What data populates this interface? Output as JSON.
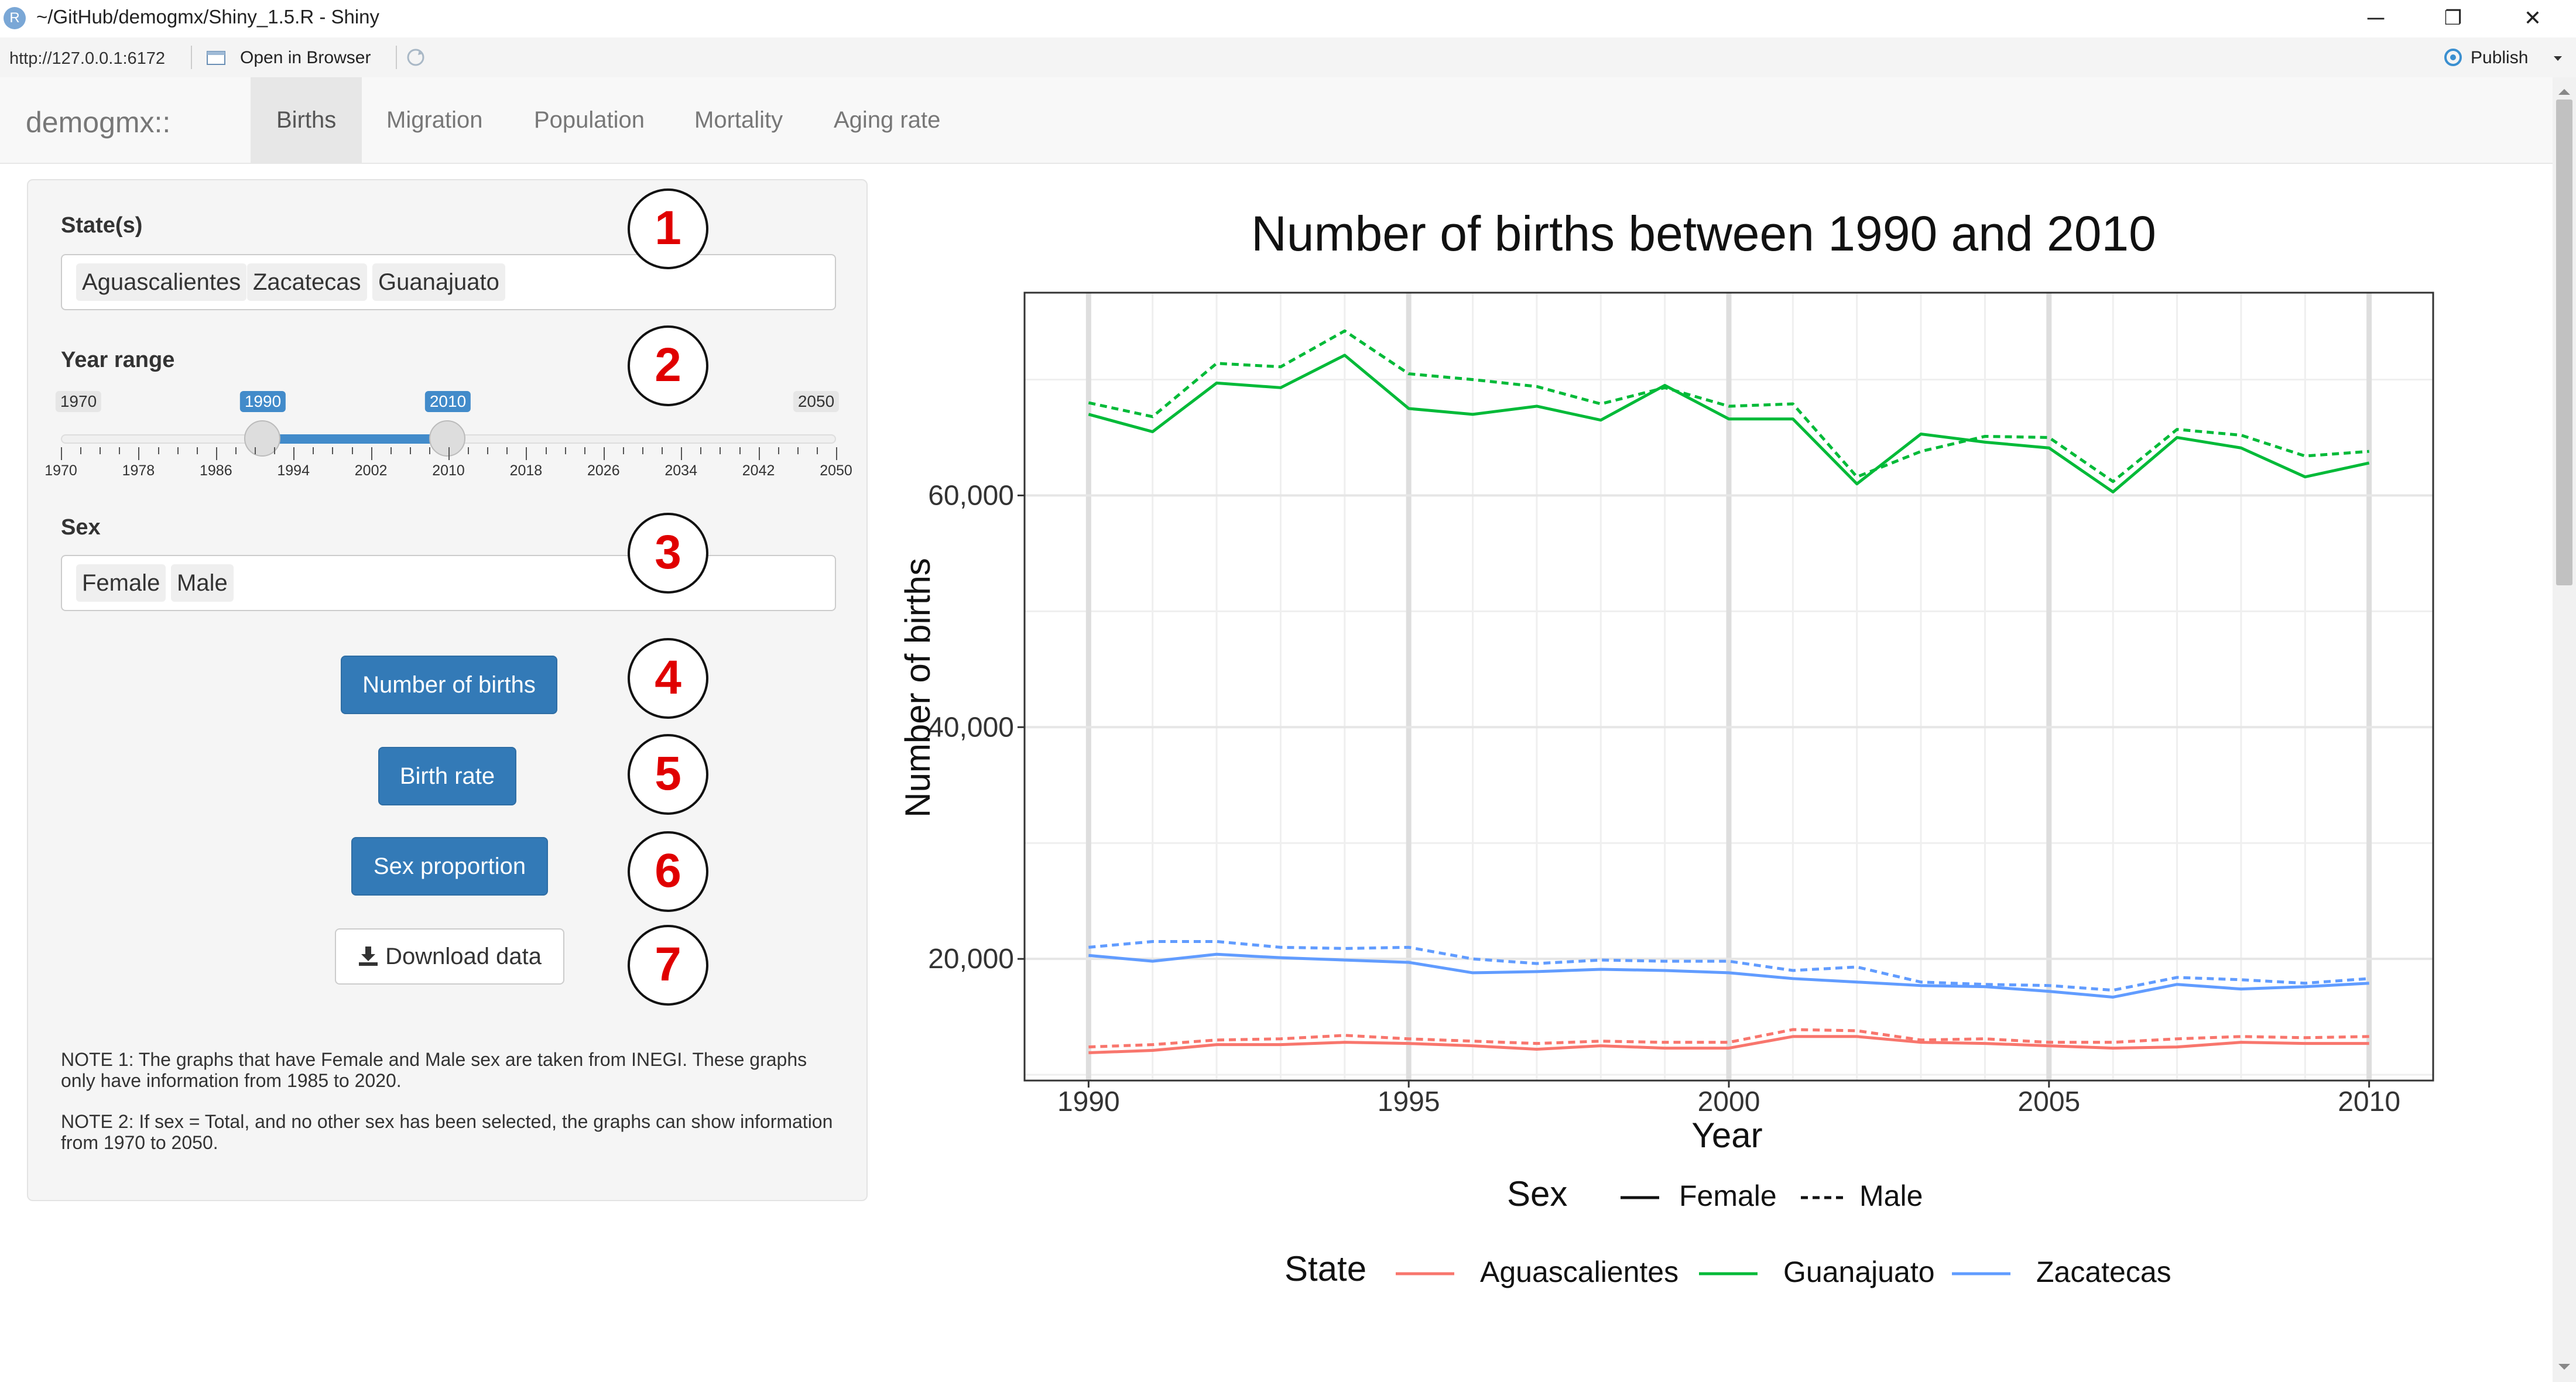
{
  "window": {
    "title": "~/GitHub/demogmx/Shiny_1.5.R - Shiny",
    "app_icon_letter": "R",
    "minimize_icon": "─",
    "restore_icon": "❐",
    "close_icon": "✕"
  },
  "addressbar": {
    "url": "http://127.0.0.1:6172",
    "open_in_browser": "Open in Browser",
    "publish": "Publish"
  },
  "navbar": {
    "brand": "demogmx::",
    "tabs": [
      "Births",
      "Migration",
      "Population",
      "Mortality",
      "Aging rate"
    ],
    "active_tab": "Births"
  },
  "sidebar": {
    "states": {
      "label": "State(s)",
      "selected": [
        "Aguascalientes",
        "Zacatecas",
        "Guanajuato"
      ]
    },
    "year_range": {
      "label": "Year range",
      "min": "1970",
      "max": "2050",
      "from": "1990",
      "to": "2010",
      "ticks": [
        "1970",
        "1978",
        "1986",
        "1994",
        "2002",
        "2010",
        "2018",
        "2026",
        "2034",
        "2042",
        "2050"
      ]
    },
    "sex": {
      "label": "Sex",
      "selected": [
        "Female",
        "Male"
      ]
    },
    "buttons": {
      "number_of_births": "Number of births",
      "birth_rate": "Birth rate",
      "sex_proportion": "Sex proportion",
      "download_data": "Download data"
    },
    "notes": [
      "NOTE 1: The graphs that have Female and Male sex are taken from INEGI. These graphs only have information from 1985 to 2020.",
      "NOTE 2: If sex = Total, and no other sex has been selected, the graphs can show information from 1970 to 2050."
    ]
  },
  "annotations": [
    "1",
    "2",
    "3",
    "4",
    "5",
    "6",
    "7"
  ],
  "chart_data": {
    "type": "line",
    "title": "Number of births between 1990 and 2010",
    "xlabel": "Year",
    "ylabel": "Number of births",
    "x": [
      1990,
      1991,
      1992,
      1993,
      1994,
      1995,
      1996,
      1997,
      1998,
      1999,
      2000,
      2001,
      2002,
      2003,
      2004,
      2005,
      2006,
      2007,
      2008,
      2009,
      2010
    ],
    "xticks": [
      "1990",
      "1995",
      "2000",
      "2005",
      "2010"
    ],
    "yticks": [
      "20,000",
      "40,000",
      "60,000"
    ],
    "ylim": [
      9500,
      77500
    ],
    "xlim": [
      1989,
      2011
    ],
    "grid": true,
    "legend_position": "bottom",
    "legend": {
      "sex_title": "Sex",
      "sex_entries": [
        "Female",
        "Male"
      ],
      "state_title": "State",
      "state_entries": [
        "Aguascalientes",
        "Guanajuato",
        "Zacatecas"
      ]
    },
    "colors": {
      "Aguascalientes": "#F8766D",
      "Guanajuato": "#00BA38",
      "Zacatecas": "#619CFF"
    },
    "series": [
      {
        "state": "Guanajuato",
        "sex": "Female",
        "values": [
          67000,
          65500,
          69700,
          69300,
          72100,
          67500,
          67000,
          67700,
          66500,
          69500,
          66600,
          66600,
          61000,
          65300,
          64600,
          64100,
          60300,
          65000,
          64100,
          61600,
          62800
        ]
      },
      {
        "state": "Guanajuato",
        "sex": "Male",
        "values": [
          68000,
          66800,
          71400,
          71100,
          74200,
          70500,
          70000,
          69400,
          67900,
          69300,
          67700,
          67900,
          61600,
          63800,
          65100,
          65000,
          61200,
          65700,
          65200,
          63400,
          63800
        ]
      },
      {
        "state": "Zacatecas",
        "sex": "Female",
        "values": [
          20300,
          19800,
          20400,
          20100,
          19900,
          19700,
          18800,
          18900,
          19100,
          19000,
          18800,
          18300,
          18000,
          17700,
          17600,
          17200,
          16700,
          17800,
          17400,
          17600,
          17900
        ]
      },
      {
        "state": "Zacatecas",
        "sex": "Male",
        "values": [
          21000,
          21500,
          21500,
          21000,
          20900,
          21000,
          20000,
          19600,
          19900,
          19800,
          19800,
          19000,
          19300,
          18000,
          17800,
          17700,
          17300,
          18400,
          18200,
          17900,
          18300
        ]
      },
      {
        "state": "Aguascalientes",
        "sex": "Female",
        "values": [
          11900,
          12100,
          12600,
          12600,
          12800,
          12700,
          12500,
          12200,
          12500,
          12300,
          12300,
          13300,
          13300,
          12800,
          12700,
          12500,
          12300,
          12400,
          12800,
          12700,
          12700
        ]
      },
      {
        "state": "Aguascalientes",
        "sex": "Male",
        "values": [
          12400,
          12600,
          13000,
          13100,
          13400,
          13100,
          12900,
          12700,
          12900,
          12800,
          12800,
          13900,
          13800,
          13000,
          13100,
          12800,
          12800,
          13100,
          13300,
          13200,
          13300
        ]
      }
    ]
  }
}
